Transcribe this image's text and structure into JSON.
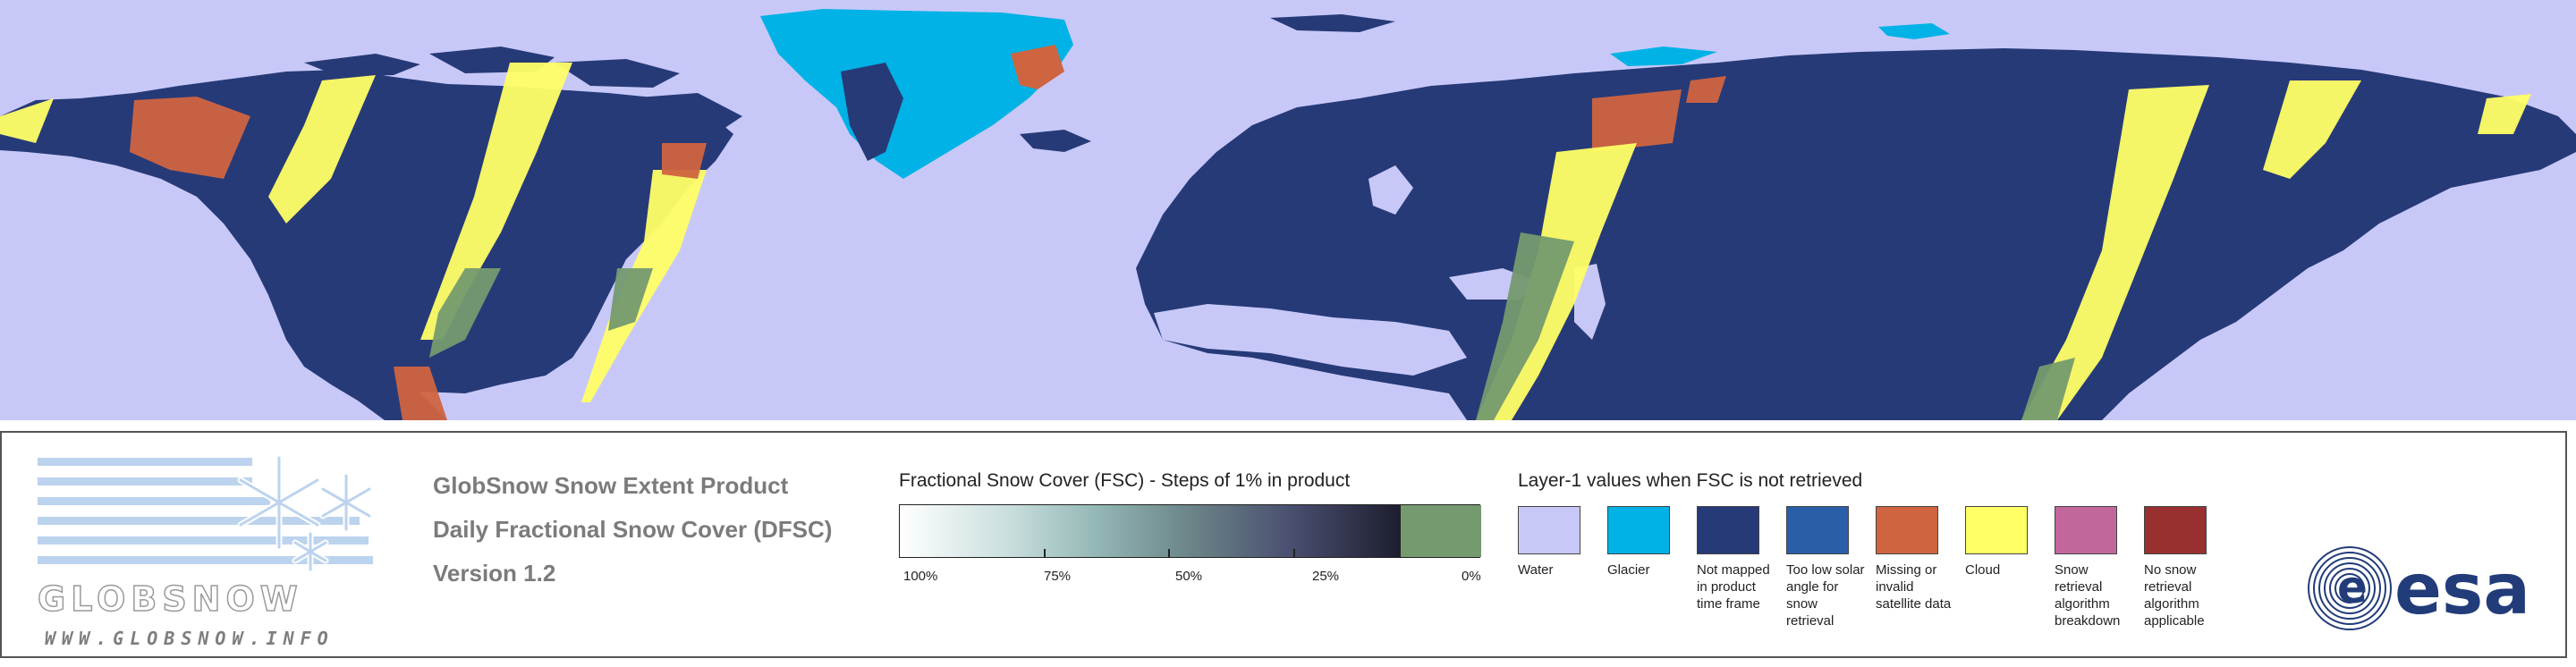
{
  "map": {
    "background": "#c8c8f8"
  },
  "logo": {
    "wordmark": "GLOBSNOW",
    "url": "WWW.GLOBSNOW.INFO"
  },
  "product": {
    "line1": "GlobSnow Snow Extent Product",
    "line2": "Daily Fractional Snow Cover (DFSC)",
    "line3": "Version 1.2"
  },
  "fsc_scale": {
    "title": "Fractional Snow Cover (FSC) - Steps of 1% in product",
    "labels": [
      "100%",
      "75%",
      "50%",
      "25%",
      "0%"
    ],
    "zero_color": "#759a6f"
  },
  "layer_legend": {
    "title": "Layer-1 values when FSC is not retrieved",
    "items": [
      {
        "label": "Water",
        "color": "#c8c8f8"
      },
      {
        "label": "Glacier",
        "color": "#00b2e6"
      },
      {
        "label": "Not mapped in product time frame",
        "color": "#263a78"
      },
      {
        "label": "Too low solar angle for snow retrieval",
        "color": "#2a5ea8"
      },
      {
        "label": "Missing or invalid satellite data",
        "color": "#cf6440"
      },
      {
        "label": "Cloud",
        "color": "#ffff66"
      },
      {
        "label": "Snow retrieval algorithm breakdown",
        "color": "#c2679c"
      },
      {
        "label": "No snow retrieval algorithm applicable",
        "color": "#983030"
      }
    ]
  },
  "esa": {
    "text": "esa",
    "color": "#223c7a"
  }
}
